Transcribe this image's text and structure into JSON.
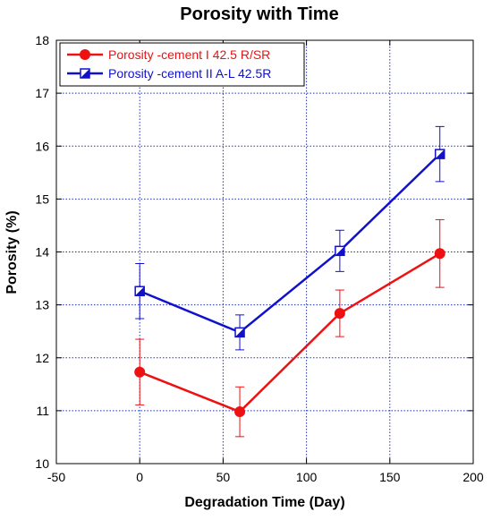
{
  "chart_data": {
    "type": "line",
    "title": "Porosity with Time",
    "xlabel": "Degradation Time (Day)",
    "ylabel": "Porosity (%)",
    "xlim": [
      -50,
      200
    ],
    "ylim": [
      10,
      18
    ],
    "xticks": [
      -50,
      0,
      50,
      100,
      150,
      200
    ],
    "yticks": [
      10,
      11,
      12,
      13,
      14,
      15,
      16,
      17,
      18
    ],
    "grid": true,
    "legend_position": "top-left",
    "series": [
      {
        "name": "Porosity -cement I 42.5 R/SR",
        "color": "#ee1111",
        "marker": "filled-circle",
        "x": [
          0,
          60,
          120,
          180
        ],
        "y": [
          11.73,
          10.98,
          12.84,
          13.97
        ],
        "err": [
          0.62,
          0.47,
          0.44,
          0.64
        ]
      },
      {
        "name": "Porosity -cement II  A-L 42.5R",
        "color": "#1111cc",
        "marker": "half-filled-square",
        "x": [
          0,
          60,
          120,
          180
        ],
        "y": [
          13.26,
          12.48,
          14.02,
          15.85
        ],
        "err": [
          0.52,
          0.33,
          0.39,
          0.52
        ]
      }
    ]
  }
}
